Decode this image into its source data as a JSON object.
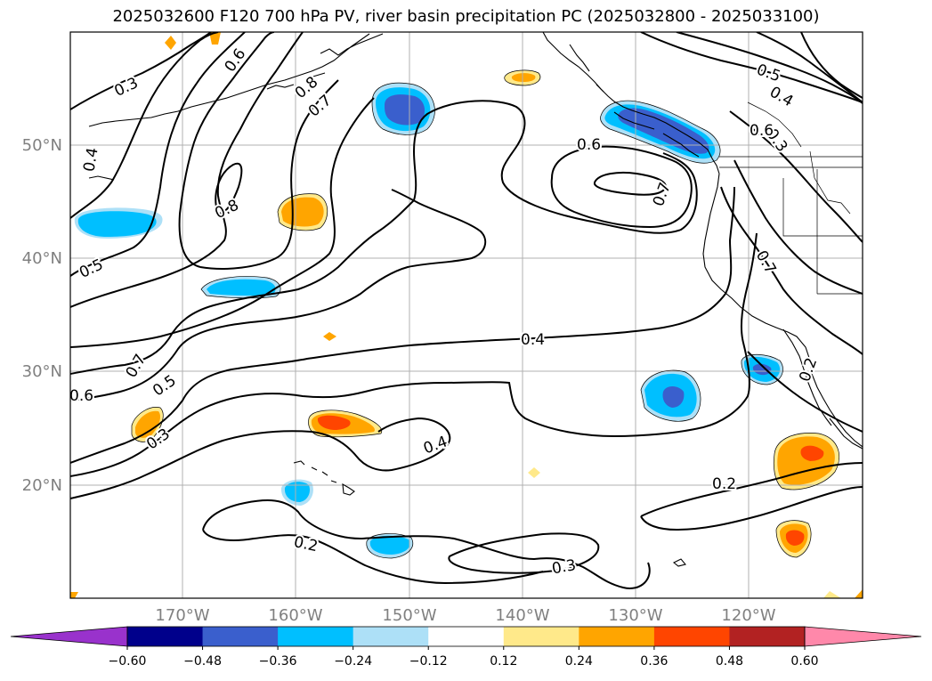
{
  "title": "2025032600 F120 700 hPa PV, river basin precipitation PC (2025032800 - 2025033100)",
  "map": {
    "lat_labels": [
      "50°N",
      "40°N",
      "30°N",
      "20°N"
    ],
    "lon_labels": [
      "170°W",
      "160°W",
      "150°W",
      "140°W",
      "130°W",
      "120°W"
    ],
    "contour_labels": [
      "0.3",
      "0.6",
      "0.8",
      "0.7",
      "0.4",
      "0.8",
      "0.5",
      "0.6",
      "0.7",
      "0.6",
      "0.5",
      "0.4",
      "0.3",
      "0.7",
      "0.5",
      "0.3",
      "0.4",
      "0.2",
      "0.2",
      "0.3",
      "0.4",
      "0.6",
      "0.2",
      "0.7"
    ]
  },
  "colorbar": {
    "tick_labels": [
      "−0.60",
      "−0.48",
      "−0.36",
      "−0.24",
      "−0.12",
      "0.12",
      "0.24",
      "0.36",
      "0.48",
      "0.60"
    ],
    "colors": [
      "#9932CC",
      "#00008B",
      "#3A5FCD",
      "#00BFFF",
      "#ADE0F7",
      "#FFFFFF",
      "#FFE98A",
      "#FFA500",
      "#FF4500",
      "#B22222",
      "#FF88AA"
    ]
  }
}
